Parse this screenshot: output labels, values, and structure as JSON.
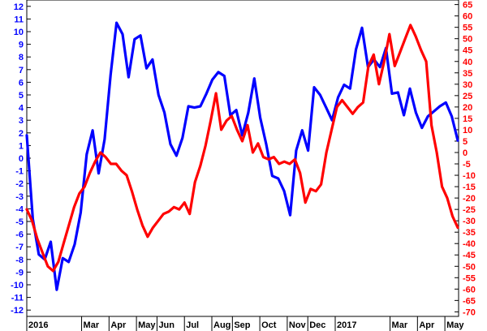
{
  "chart_data": {
    "type": "line",
    "title": "",
    "xlabel": "",
    "x_tick_labels": [
      "2016",
      "Mar",
      "Apr",
      "May",
      "Jun",
      "Jul",
      "Aug",
      "Sep",
      "Oct",
      "Nov",
      "Dec",
      "2017",
      "Mar",
      "Apr",
      "May"
    ],
    "x_tick_index": [
      0,
      8,
      12,
      16,
      19,
      23,
      27,
      30,
      34,
      38,
      41,
      45,
      53,
      57,
      61
    ],
    "x_count": 64,
    "left_axis": {
      "color": "#0000ff",
      "ylim": [
        -12.5,
        12.5
      ],
      "ticks": [
        12,
        11,
        10,
        9,
        8,
        7,
        6,
        5,
        4,
        3,
        2,
        1,
        0,
        -1,
        -2,
        -3,
        -4,
        -5,
        -6,
        -7,
        -8,
        -9,
        -10,
        -11,
        -12
      ]
    },
    "right_axis": {
      "color": "#ff0000",
      "ylim": [
        -72,
        67
      ],
      "ticks": [
        65,
        60,
        55,
        50,
        45,
        40,
        35,
        30,
        25,
        20,
        15,
        10,
        5,
        0,
        -5,
        -10,
        -15,
        -20,
        -25,
        -30,
        -35,
        -40,
        -45,
        -50,
        -55,
        -60,
        -65,
        -70
      ]
    },
    "series": [
      {
        "axis": "left",
        "color": "#0000ff",
        "values": [
          1.8,
          -4.8,
          -7.6,
          -8.0,
          -6.6,
          -10.4,
          -7.9,
          -8.2,
          -6.8,
          -4.3,
          0.3,
          2.2,
          -1.2,
          1.5,
          6.6,
          10.7,
          9.8,
          6.4,
          9.4,
          9.7,
          7.1,
          7.8,
          5.0,
          3.6,
          1.1,
          0.2,
          1.6,
          4.1,
          4.0,
          4.1,
          5.1,
          6.2,
          6.8,
          6.5,
          3.4,
          3.8,
          1.8,
          3.6,
          6.3,
          3.2,
          1.1,
          -1.4,
          -1.6,
          -2.6,
          -4.5,
          0.6,
          2.2,
          0.6,
          5.6,
          5.0,
          4.0,
          3.0,
          4.8,
          5.8,
          5.5,
          8.6,
          10.3,
          7.2,
          7.8,
          7.2,
          8.7,
          5.1,
          5.2,
          3.4,
          5.5,
          3.6,
          2.4,
          3.3,
          3.7,
          4.1,
          4.4,
          3.3,
          1.4
        ]
      },
      {
        "axis": "right",
        "color": "#ff0000",
        "values": [
          -25,
          -30,
          -38,
          -44,
          -50,
          -52,
          -48,
          -40,
          -32,
          -24,
          -18,
          -15,
          -9,
          -4,
          0,
          -2,
          -5,
          -5,
          -8,
          -10,
          -17,
          -25,
          -32,
          -37,
          -33,
          -30,
          -27,
          -26,
          -24,
          -25,
          -22,
          -27,
          -13,
          -6,
          3,
          14,
          26,
          10,
          14,
          16,
          10,
          5,
          12,
          0,
          4,
          -2,
          -3,
          -2,
          -5,
          -4,
          -5,
          -3,
          -9,
          -22,
          -16,
          -17,
          -14,
          0,
          10,
          20,
          23,
          20,
          17,
          20,
          22,
          38,
          43,
          30,
          40,
          52,
          38,
          44,
          50,
          56,
          51,
          45,
          40,
          12,
          0,
          -15,
          -20,
          -28,
          -33
        ]
      }
    ]
  }
}
